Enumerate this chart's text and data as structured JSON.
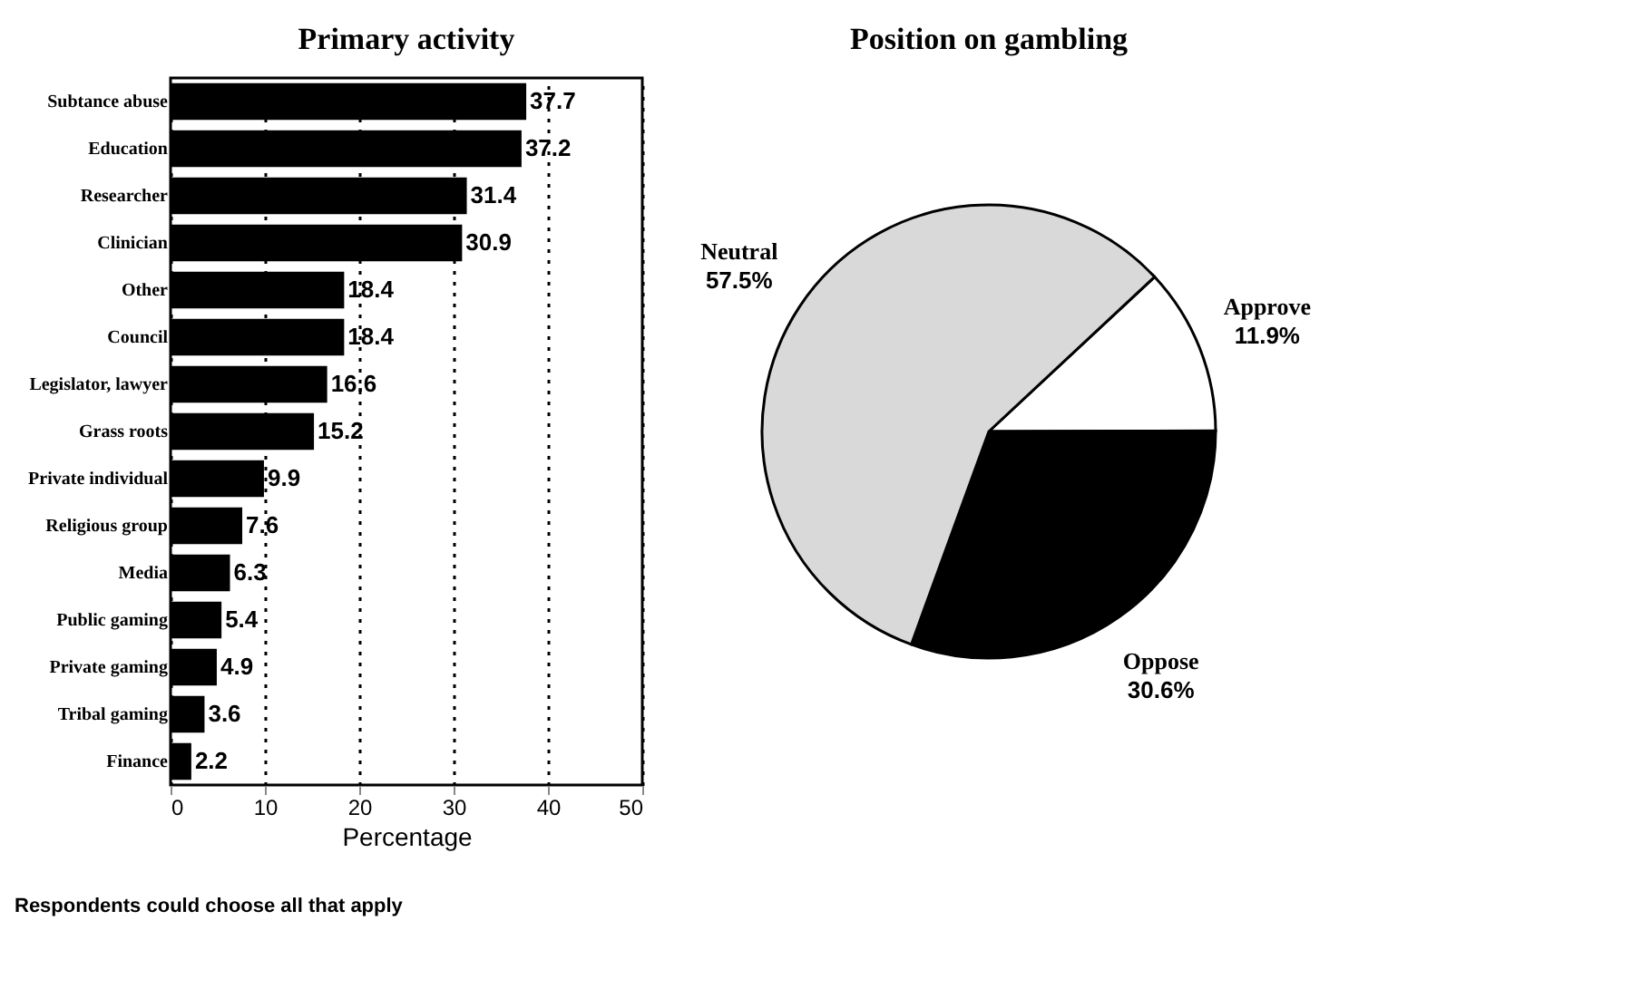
{
  "chart_data": [
    {
      "type": "bar",
      "orientation": "horizontal",
      "title": "Primary activity",
      "xlabel": "Percentage",
      "categories": [
        "Subtance abuse",
        "Education",
        "Researcher",
        "Clinician",
        "Other",
        "Council",
        "Legislator, lawyer",
        "Grass roots",
        "Private individual",
        "Religious group",
        "Media",
        "Public gaming",
        "Private gaming",
        "Tribal gaming",
        "Finance"
      ],
      "values": [
        37.7,
        37.2,
        31.4,
        30.9,
        18.4,
        18.4,
        16.6,
        15.2,
        9.9,
        7.6,
        6.3,
        5.4,
        4.9,
        3.6,
        2.2
      ],
      "color": "#000000",
      "xlim": [
        0,
        50
      ],
      "xticks": [
        0,
        10,
        20,
        30,
        40,
        50
      ],
      "grid": "x",
      "data_labels": true,
      "annotations": [
        "Respondents could choose all that apply"
      ]
    },
    {
      "type": "pie",
      "title": "Position on gambling",
      "categories": [
        "Approve",
        "Oppose",
        "Neutral"
      ],
      "values": [
        11.9,
        30.6,
        57.5
      ],
      "value_labels": [
        "11.9%",
        "30.6%",
        "57.5%"
      ],
      "colors": [
        "#ffffff",
        "#000000",
        "#d9d9d9"
      ]
    }
  ]
}
